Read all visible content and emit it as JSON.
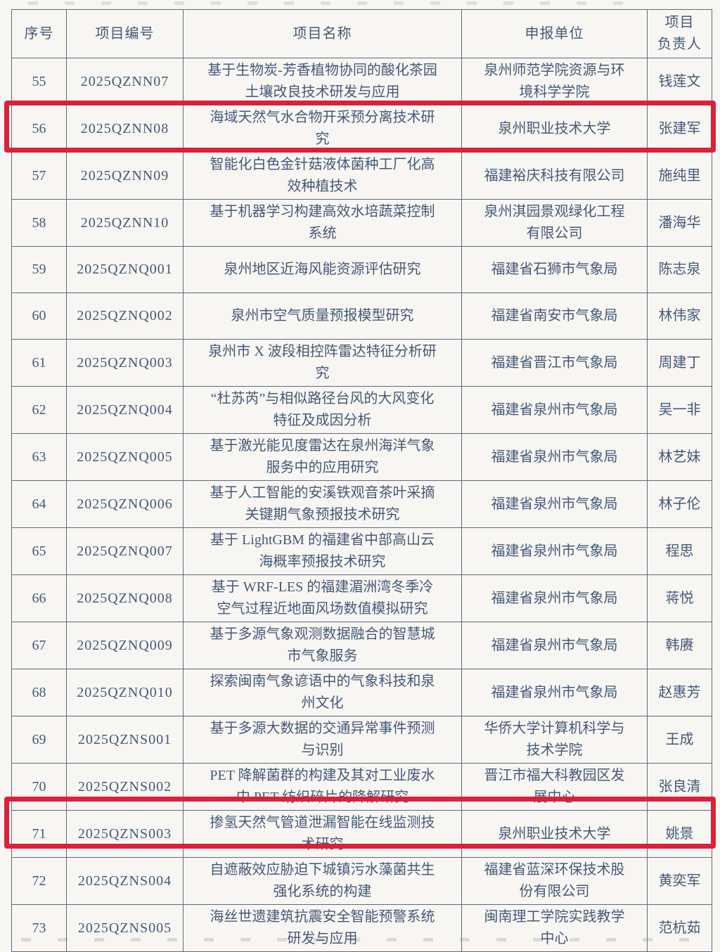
{
  "table": {
    "border_color": "#5f6a7d",
    "text_color": "#455877",
    "highlight_color": "#dc203a",
    "highlighted_row_numbers": [
      "56",
      "71"
    ],
    "headers": [
      "序号",
      "项目编号",
      "项目名称",
      "申报单位",
      "项目\n负责人"
    ],
    "rows": [
      {
        "no": "55",
        "code": "2025QZNN07",
        "name": "基于生物炭-芳香植物协同的酸化茶园土壤改良技术研发与应用",
        "unit": "泉州师范学院资源与环境科学学院",
        "leader": "钱莲文"
      },
      {
        "no": "56",
        "code": "2025QZNN08",
        "name": "海域天然气水合物开采预分离技术研究",
        "unit": "泉州职业技术大学",
        "leader": "张建军"
      },
      {
        "no": "57",
        "code": "2025QZNN09",
        "name": "智能化白色金针菇液体菌种工厂化高效种植技术",
        "unit": "福建裕庆科技有限公司",
        "leader": "施纯里"
      },
      {
        "no": "58",
        "code": "2025QZNN10",
        "name": "基于机器学习构建高效水培蔬菜控制系统",
        "unit": "泉州淇园景观绿化工程有限公司",
        "leader": "潘海华"
      },
      {
        "no": "59",
        "code": "2025QZNQ001",
        "name": "泉州地区近海风能资源评估研究",
        "unit": "福建省石狮市气象局",
        "leader": "陈志泉"
      },
      {
        "no": "60",
        "code": "2025QZNQ002",
        "name": "泉州市空气质量预报模型研究",
        "unit": "福建省南安市气象局",
        "leader": "林伟家"
      },
      {
        "no": "61",
        "code": "2025QZNQ003",
        "name": "泉州市 X 波段相控阵雷达特征分析研究",
        "unit": "福建省晋江市气象局",
        "leader": "周建丁"
      },
      {
        "no": "62",
        "code": "2025QZNQ004",
        "name": "“杜苏芮”与相似路径台风的大风变化特征及成因分析",
        "unit": "福建省泉州市气象局",
        "leader": "吴一非"
      },
      {
        "no": "63",
        "code": "2025QZNQ005",
        "name": "基于激光能见度雷达在泉州海洋气象服务中的应用研究",
        "unit": "福建省泉州市气象局",
        "leader": "林艺妹"
      },
      {
        "no": "64",
        "code": "2025QZNQ006",
        "name": "基于人工智能的安溪铁观音茶叶采摘关键期气象预报技术研究",
        "unit": "福建省泉州市气象局",
        "leader": "林子伦"
      },
      {
        "no": "65",
        "code": "2025QZNQ007",
        "name": "基于 LightGBM 的福建省中部高山云海概率预报技术研究",
        "unit": "福建省泉州市气象局",
        "leader": "程思"
      },
      {
        "no": "66",
        "code": "2025QZNQ008",
        "name": "基于 WRF-LES 的福建湄洲湾冬季冷空气过程近地面风场数值模拟研究",
        "unit": "福建省泉州市气象局",
        "leader": "蒋悦"
      },
      {
        "no": "67",
        "code": "2025QZNQ009",
        "name": "基于多源气象观测数据融合的智慧城市气象服务",
        "unit": "福建省泉州市气象局",
        "leader": "韩赓"
      },
      {
        "no": "68",
        "code": "2025QZNQ010",
        "name": "探索闽南气象谚语中的气象科技和泉州文化",
        "unit": "福建省泉州市气象局",
        "leader": "赵惠芳"
      },
      {
        "no": "69",
        "code": "2025QZNS001",
        "name": "基于多源大数据的交通异常事件预测与识别",
        "unit": "华侨大学计算机科学与技术学院",
        "leader": "王成"
      },
      {
        "no": "70",
        "code": "2025QZNS002",
        "name": "PET 降解菌群的构建及其对工业废水中 PET 纺织碎片的降解研究",
        "unit": "晋江市福大科教园区发展中心",
        "leader": "张良清"
      },
      {
        "no": "71",
        "code": "2025QZNS003",
        "name": "掺氢天然气管道泄漏智能在线监测技术研究",
        "unit": "泉州职业技术大学",
        "leader": "姚景"
      },
      {
        "no": "72",
        "code": "2025QZNS004",
        "name": "自遮蔽效应胁迫下城镇污水藻菌共生强化系统的构建",
        "unit": "福建省蓝深环保技术股份有限公司",
        "leader": "黄奕军"
      },
      {
        "no": "73",
        "code": "2025QZNS005",
        "name": "海丝世遗建筑抗震安全智能预警系统研发与应用",
        "unit": "闽南理工学院实践教学中心",
        "leader": "范杭茹"
      }
    ]
  }
}
